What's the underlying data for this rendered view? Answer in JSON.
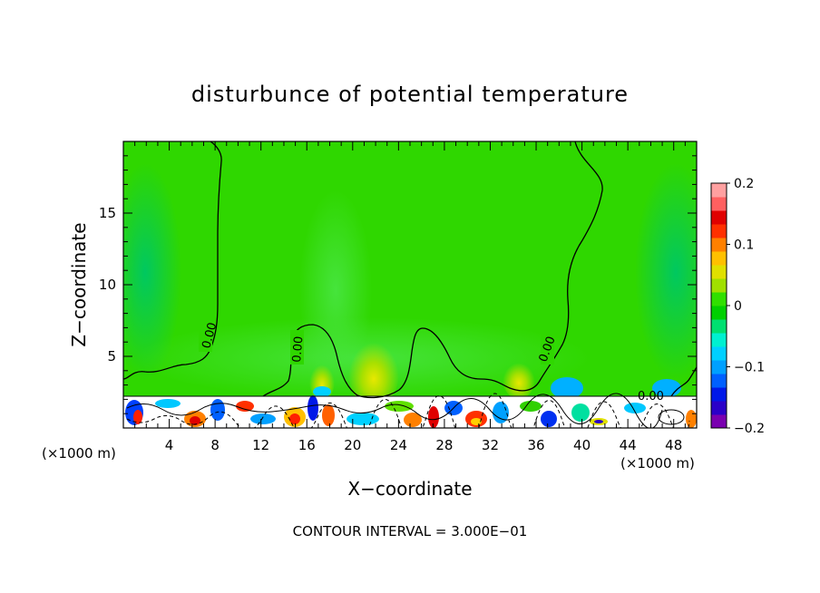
{
  "chart_data": {
    "type": "heatmap",
    "title": "disturbunce of potential temperature",
    "xlabel": "X−coordinate",
    "ylabel": "Z−coordinate",
    "x_unit": "(×1000 m)",
    "z_unit": "(×1000 m)",
    "xlim": [
      0,
      50
    ],
    "ylim": [
      0,
      20
    ],
    "x_ticks": [
      4,
      8,
      12,
      16,
      20,
      24,
      28,
      32,
      36,
      40,
      44,
      48
    ],
    "y_ticks": [
      5,
      10,
      15
    ],
    "colorbar": {
      "range": [
        -0.2,
        0.2
      ],
      "tick_values": [
        0.2,
        0.1,
        0,
        -0.1,
        -0.2
      ],
      "tick_labels": [
        "0.2",
        "0.1",
        "0",
        "−0.1",
        "−0.2"
      ],
      "colors": [
        "#7a00b0",
        "#2a00c8",
        "#0018e8",
        "#0060ff",
        "#00a0ff",
        "#00d0ff",
        "#00f0d0",
        "#00e070",
        "#00d000",
        "#30e000",
        "#a0e000",
        "#e0e000",
        "#ffc000",
        "#ff8000",
        "#ff3000",
        "#e00000",
        "#ff6060",
        "#ffa0a0"
      ]
    },
    "contour_labels": [
      "0.00",
      "0.00",
      "0.00",
      "0.00"
    ],
    "annotation": "CONTOUR INTERVAL = 3.000E−01",
    "grid": false
  }
}
